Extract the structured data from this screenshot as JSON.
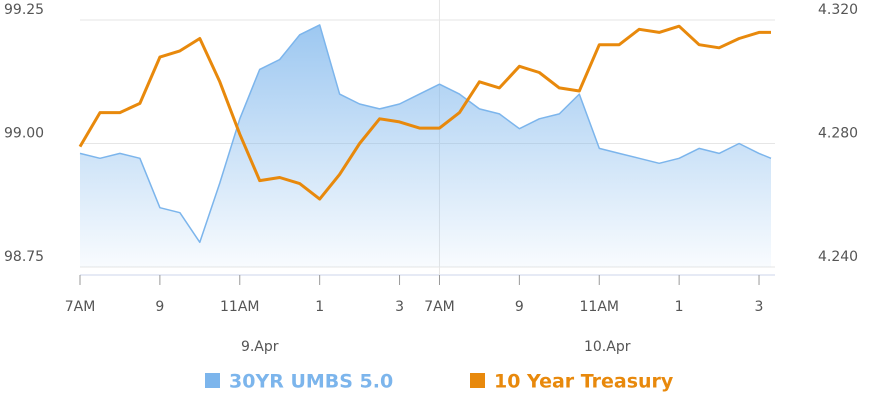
{
  "chart_data": {
    "type": "line",
    "x": [
      0,
      0.5,
      1,
      1.5,
      2,
      2.5,
      3,
      3.5,
      4,
      4.5,
      5,
      5.5,
      6,
      6.5,
      7,
      7.5,
      8,
      8.5,
      9,
      9.5,
      10,
      10.5,
      11,
      11.5,
      12,
      12.5,
      13,
      13.5,
      14,
      14.5,
      15,
      15.5,
      16,
      16.5,
      17,
      17.3
    ],
    "xlim": [
      0,
      17.4
    ],
    "xticks": [
      {
        "value": 0,
        "label": "7AM"
      },
      {
        "value": 2,
        "label": "9"
      },
      {
        "value": 4,
        "label": "11AM"
      },
      {
        "value": 6,
        "label": "1"
      },
      {
        "value": 8,
        "label": "3"
      },
      {
        "value": 9,
        "label": "7AM"
      },
      {
        "value": 11,
        "label": "9"
      },
      {
        "value": 13,
        "label": "11AM"
      },
      {
        "value": 15,
        "label": "1"
      },
      {
        "value": 17,
        "label": "3"
      }
    ],
    "day_labels": [
      "9.Apr",
      "10.Apr"
    ],
    "ylim": [
      98.75,
      99.25
    ],
    "yticks": [
      98.75,
      {
        "value": 99,
        "label": "99.00"
      },
      99.25
    ],
    "y2lim": [
      4.24,
      4.32
    ],
    "y2ticks": [
      {
        "value": 4.24,
        "label": "4.240"
      },
      {
        "value": 4.28,
        "label": "4.280"
      },
      {
        "value": 4.32,
        "label": "4.320"
      }
    ],
    "legend": "bottom",
    "series": [
      {
        "name": "30YR UMBS 5.0",
        "color": "#7cb5ec",
        "area": true,
        "values": [
          98.98,
          98.97,
          98.98,
          98.97,
          98.87,
          98.86,
          98.8,
          98.92,
          99.05,
          99.15,
          99.17,
          99.22,
          99.24,
          99.1,
          99.08,
          99.07,
          99.08,
          99.1,
          99.12,
          99.1,
          99.07,
          99.06,
          99.03,
          99.05,
          99.06,
          99.1,
          98.99,
          98.98,
          98.97,
          98.96,
          98.97,
          98.99,
          98.98,
          99.0,
          98.98,
          98.97
        ]
      },
      {
        "name": "10 Year Treasury",
        "color": "#e8890c",
        "axis": "y2",
        "values": [
          4.279,
          4.29,
          4.29,
          4.293,
          4.308,
          4.31,
          4.314,
          4.3,
          4.283,
          4.268,
          4.269,
          4.267,
          4.262,
          4.27,
          4.28,
          4.288,
          4.287,
          4.285,
          4.285,
          4.29,
          4.3,
          4.298,
          4.305,
          4.303,
          4.298,
          4.297,
          4.312,
          4.312,
          4.317,
          4.316,
          4.318,
          4.312,
          4.311,
          4.314,
          4.316,
          4.316
        ]
      }
    ]
  }
}
